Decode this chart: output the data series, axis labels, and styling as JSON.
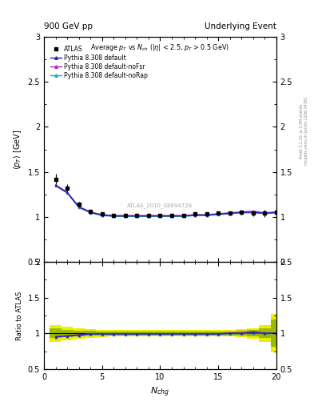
{
  "title_left": "900 GeV pp",
  "title_right": "Underlying Event",
  "panel_title": "Average $p_T$ vs $N_{ch}$ ($|\\eta|$ < 2.5, $p_T$ > 0.5 GeV)",
  "right_label_top": "Rivet 3.1.10, ≥ 3.3M events",
  "right_label_url": "mcplots.cern.ch [arXiv:1306.3436]",
  "watermark": "ATLAS_2010_S8894728",
  "ylim_main": [
    0.5,
    3.0
  ],
  "ylim_ratio": [
    0.5,
    2.0
  ],
  "xlim": [
    0,
    20
  ],
  "yticks_main": [
    0.5,
    1.0,
    1.5,
    2.0,
    2.5,
    3.0
  ],
  "yticks_ratio": [
    0.5,
    1.0,
    1.5,
    2.0
  ],
  "xticks": [
    0,
    5,
    10,
    15,
    20
  ],
  "atlas_x": [
    1,
    2,
    3,
    4,
    5,
    6,
    7,
    8,
    9,
    10,
    11,
    12,
    13,
    14,
    15,
    16,
    17,
    18,
    19,
    20
  ],
  "atlas_y": [
    1.42,
    1.32,
    1.14,
    1.06,
    1.03,
    1.02,
    1.02,
    1.02,
    1.02,
    1.02,
    1.02,
    1.02,
    1.03,
    1.03,
    1.04,
    1.04,
    1.05,
    1.04,
    1.04,
    1.05
  ],
  "atlas_yerr": [
    0.06,
    0.04,
    0.025,
    0.015,
    0.01,
    0.01,
    0.01,
    0.01,
    0.01,
    0.01,
    0.01,
    0.01,
    0.01,
    0.01,
    0.015,
    0.02,
    0.025,
    0.03,
    0.04,
    0.055
  ],
  "default_x": [
    1,
    2,
    3,
    4,
    5,
    6,
    7,
    8,
    9,
    10,
    11,
    12,
    13,
    14,
    15,
    16,
    17,
    18,
    19,
    20
  ],
  "default_y": [
    1.35,
    1.27,
    1.11,
    1.05,
    1.02,
    1.01,
    1.01,
    1.01,
    1.01,
    1.01,
    1.01,
    1.01,
    1.02,
    1.02,
    1.03,
    1.04,
    1.05,
    1.05,
    1.04,
    1.05
  ],
  "noFsr_x": [
    1,
    2,
    3,
    4,
    5,
    6,
    7,
    8,
    9,
    10,
    11,
    12,
    13,
    14,
    15,
    16,
    17,
    18,
    19,
    20
  ],
  "noFsr_y": [
    1.355,
    1.275,
    1.115,
    1.055,
    1.025,
    1.015,
    1.015,
    1.015,
    1.015,
    1.015,
    1.015,
    1.015,
    1.025,
    1.025,
    1.035,
    1.045,
    1.055,
    1.065,
    1.045,
    1.055
  ],
  "noRap_x": [
    1,
    2,
    3,
    4,
    5,
    6,
    7,
    8,
    9,
    10,
    11,
    12,
    13,
    14,
    15,
    16,
    17,
    18,
    19,
    20
  ],
  "noRap_y": [
    1.345,
    1.265,
    1.105,
    1.045,
    1.015,
    1.005,
    1.005,
    1.005,
    1.005,
    1.005,
    1.005,
    1.005,
    1.015,
    1.015,
    1.025,
    1.035,
    1.045,
    1.045,
    1.035,
    1.045
  ],
  "ratio_default": [
    0.951,
    0.962,
    0.974,
    0.991,
    0.99,
    0.99,
    0.99,
    0.99,
    0.99,
    0.99,
    0.99,
    0.99,
    0.99,
    0.99,
    0.99,
    1.0,
    1.0,
    1.01,
    1.0,
    1.0
  ],
  "ratio_noFsr": [
    0.954,
    0.966,
    0.978,
    0.995,
    0.995,
    0.995,
    0.995,
    0.995,
    0.995,
    0.995,
    0.995,
    0.995,
    0.995,
    0.995,
    0.995,
    1.005,
    1.005,
    1.024,
    1.005,
    1.005
  ],
  "ratio_noRap": [
    0.948,
    0.958,
    0.97,
    0.987,
    0.985,
    0.985,
    0.985,
    0.985,
    0.985,
    0.985,
    0.985,
    0.985,
    0.985,
    0.985,
    0.985,
    0.995,
    0.995,
    1.005,
    0.995,
    0.995
  ],
  "atlas_band_inner_lo": [
    0.935,
    0.95,
    0.96,
    0.965,
    0.97,
    0.973,
    0.973,
    0.973,
    0.973,
    0.973,
    0.973,
    0.973,
    0.973,
    0.973,
    0.973,
    0.973,
    0.968,
    0.958,
    0.935,
    0.81
  ],
  "atlas_band_inner_hi": [
    1.065,
    1.05,
    1.04,
    1.035,
    1.03,
    1.027,
    1.027,
    1.027,
    1.027,
    1.027,
    1.027,
    1.027,
    1.027,
    1.027,
    1.027,
    1.027,
    1.032,
    1.042,
    1.065,
    1.19
  ],
  "atlas_band_outer_lo": [
    0.88,
    0.905,
    0.925,
    0.938,
    0.948,
    0.953,
    0.953,
    0.953,
    0.953,
    0.953,
    0.953,
    0.953,
    0.953,
    0.953,
    0.953,
    0.953,
    0.943,
    0.925,
    0.88,
    0.73
  ],
  "atlas_band_outer_hi": [
    1.12,
    1.095,
    1.075,
    1.062,
    1.052,
    1.047,
    1.047,
    1.047,
    1.047,
    1.047,
    1.047,
    1.047,
    1.047,
    1.047,
    1.047,
    1.047,
    1.057,
    1.075,
    1.12,
    1.27
  ],
  "color_default": "#2222bb",
  "color_noFsr": "#bb22bb",
  "color_noRap": "#22aaaa",
  "color_atlas": "#000000",
  "color_band_inner": "#99bb00",
  "color_band_outer": "#eeee00",
  "legend_labels": [
    "ATLAS",
    "Pythia 8.308 default",
    "Pythia 8.308 default-noFsr",
    "Pythia 8.308 default-noRap"
  ],
  "bg_color": "#ffffff"
}
